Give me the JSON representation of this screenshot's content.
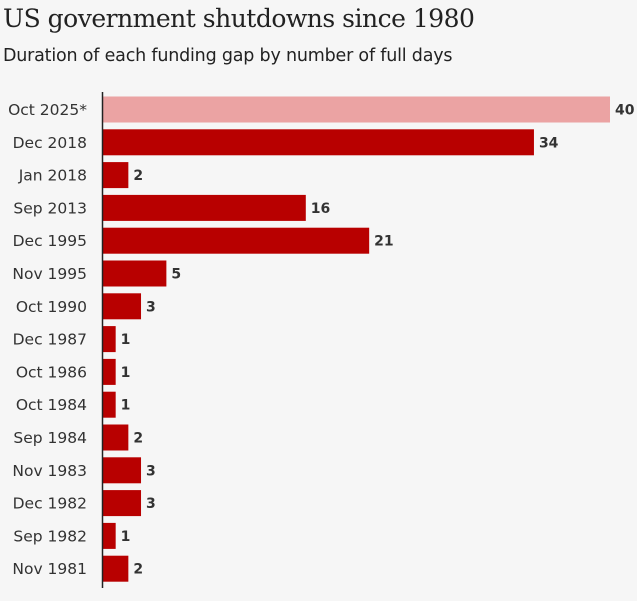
{
  "chart_data": {
    "type": "bar",
    "orientation": "horizontal",
    "title": "US government shutdowns since 1980",
    "subtitle": "Duration of each funding gap by number of full days",
    "xlabel": "",
    "ylabel": "",
    "xlim": [
      0,
      40
    ],
    "grid": false,
    "legend": "none",
    "categories": [
      "Oct 2025*",
      "Dec 2018",
      "Jan 2018",
      "Sep 2013",
      "Dec 1995",
      "Nov 1995",
      "Oct 1990",
      "Dec 1987",
      "Oct 1986",
      "Oct 1984",
      "Sep 1984",
      "Nov 1983",
      "Dec 1982",
      "Sep 1982",
      "Nov 1981"
    ],
    "values": [
      40,
      34,
      2,
      16,
      21,
      5,
      3,
      1,
      1,
      1,
      2,
      3,
      3,
      1,
      2
    ],
    "highlight_index": 0,
    "colors": {
      "bar": "#b80000",
      "highlight": "#eba3a3",
      "axis": "#222222"
    }
  }
}
